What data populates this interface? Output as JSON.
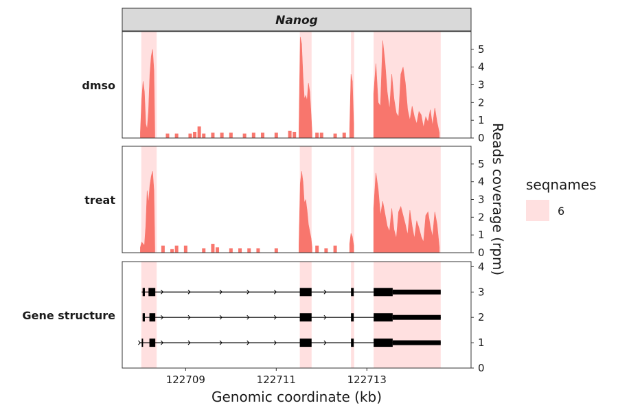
{
  "chart_data": {
    "type": "area",
    "strip_title": "Nanog",
    "x_axis": {
      "title": "Genomic coordinate (kb)",
      "ticks": [
        122709,
        122711,
        122713
      ],
      "tick_labels": [
        "122709",
        "122711",
        "122713"
      ],
      "range": [
        122707.6,
        122715.3
      ]
    },
    "y_axis": {
      "title": "Reads coverage (rpm)",
      "coverage_ticks": [
        0,
        1,
        2,
        3,
        4,
        5
      ],
      "gene_ticks": [
        0,
        1,
        2,
        3,
        4
      ],
      "coverage_range": [
        0,
        6
      ],
      "gene_range": [
        0,
        4.2
      ]
    },
    "panel_labels": [
      "dmso",
      "treat",
      "Gene structure"
    ],
    "legend": {
      "title": "seqnames",
      "entries": [
        {
          "label": "6",
          "color": "#ffe0e0"
        }
      ],
      "placement": "right"
    },
    "colors": {
      "coverage": "#f8766d",
      "highlight": "#ffe0e0",
      "strip": "#d9d9d9",
      "gene": "#000000"
    },
    "highlight_regions": [
      [
        122708.02,
        122708.36
      ],
      [
        122711.52,
        122711.78
      ],
      [
        122712.65,
        122712.72
      ],
      [
        122713.15,
        122714.63
      ]
    ],
    "series": [
      {
        "name": "dmso",
        "peaks": [
          {
            "x": [
              122708.0,
              122708.03,
              122708.06,
              122708.09,
              122708.12,
              122708.15,
              122708.18,
              122708.21,
              122708.24,
              122708.27,
              122708.3,
              122708.32
            ],
            "y": [
              0.3,
              2.2,
              3.2,
              2.6,
              0.8,
              0.5,
              1.5,
              3.6,
              4.6,
              5.0,
              3.8,
              0.3
            ]
          },
          {
            "x": [
              122711.5,
              122711.53,
              122711.56,
              122711.59,
              122711.62,
              122711.65,
              122711.68,
              122711.71,
              122711.74,
              122711.77,
              122711.79
            ],
            "y": [
              0.4,
              5.7,
              5.3,
              3.5,
              2.2,
              2.4,
              2.1,
              3.1,
              2.6,
              1.3,
              0.3
            ]
          },
          {
            "x": [
              122712.62,
              122712.65,
              122712.68,
              122712.71
            ],
            "y": [
              0.5,
              3.6,
              3.2,
              0.8
            ]
          },
          {
            "x": [
              122713.15,
              122713.2,
              122713.25,
              122713.3,
              122713.35,
              122713.4,
              122713.45,
              122713.5,
              122713.55,
              122713.6,
              122713.65,
              122713.7,
              122713.75,
              122713.8,
              122713.85,
              122713.9,
              122713.95,
              122714.0,
              122714.05,
              122714.1,
              122714.15,
              122714.2,
              122714.25,
              122714.3,
              122714.35,
              122714.4,
              122714.45,
              122714.5,
              122714.55,
              122714.6
            ],
            "y": [
              2.5,
              4.2,
              2.0,
              1.8,
              5.5,
              4.3,
              2.6,
              1.6,
              3.6,
              2.2,
              1.4,
              1.2,
              3.6,
              4.0,
              3.1,
              1.6,
              1.0,
              1.8,
              1.2,
              0.8,
              1.5,
              1.3,
              0.6,
              1.2,
              0.9,
              1.6,
              0.7,
              1.7,
              0.9,
              0.3
            ]
          }
        ],
        "blips": [
          {
            "x": 122708.6,
            "y": 0.25
          },
          {
            "x": 122708.8,
            "y": 0.25
          },
          {
            "x": 122709.1,
            "y": 0.25
          },
          {
            "x": 122709.2,
            "y": 0.35
          },
          {
            "x": 122709.3,
            "y": 0.65
          },
          {
            "x": 122709.4,
            "y": 0.25
          },
          {
            "x": 122709.6,
            "y": 0.3
          },
          {
            "x": 122709.8,
            "y": 0.3
          },
          {
            "x": 122710.0,
            "y": 0.3
          },
          {
            "x": 122710.3,
            "y": 0.25
          },
          {
            "x": 122710.5,
            "y": 0.3
          },
          {
            "x": 122710.7,
            "y": 0.3
          },
          {
            "x": 122711.0,
            "y": 0.3
          },
          {
            "x": 122711.3,
            "y": 0.4
          },
          {
            "x": 122711.4,
            "y": 0.35
          },
          {
            "x": 122711.9,
            "y": 0.3
          },
          {
            "x": 122712.0,
            "y": 0.3
          },
          {
            "x": 122712.3,
            "y": 0.25
          },
          {
            "x": 122712.5,
            "y": 0.3
          }
        ]
      },
      {
        "name": "treat",
        "peaks": [
          {
            "x": [
              122708.0,
              122708.03,
              122708.06,
              122708.09,
              122708.12,
              122708.15,
              122708.18,
              122708.21,
              122708.24,
              122708.27,
              122708.3,
              122708.32
            ],
            "y": [
              0.3,
              0.6,
              0.5,
              0.4,
              1.5,
              3.5,
              2.8,
              3.8,
              4.3,
              4.6,
              3.5,
              0.3
            ]
          },
          {
            "x": [
              122711.5,
              122711.53,
              122711.56,
              122711.59,
              122711.62,
              122711.65,
              122711.68,
              122711.71,
              122711.74,
              122711.77,
              122711.79
            ],
            "y": [
              0.4,
              3.9,
              4.6,
              4.0,
              2.8,
              3.0,
              2.4,
              1.6,
              1.2,
              0.8,
              0.3
            ]
          },
          {
            "x": [
              122712.62,
              122712.65,
              122712.68,
              122712.71
            ],
            "y": [
              0.5,
              1.1,
              0.9,
              0.4
            ]
          },
          {
            "x": [
              122713.15,
              122713.2,
              122713.25,
              122713.3,
              122713.35,
              122713.4,
              122713.45,
              122713.5,
              122713.55,
              122713.6,
              122713.65,
              122713.7,
              122713.75,
              122713.8,
              122713.85,
              122713.9,
              122713.95,
              122714.0,
              122714.05,
              122714.1,
              122714.15,
              122714.2,
              122714.25,
              122714.3,
              122714.35,
              122714.4,
              122714.45,
              122714.5,
              122714.55,
              122714.6
            ],
            "y": [
              2.5,
              4.5,
              3.6,
              2.1,
              2.9,
              2.2,
              1.5,
              1.2,
              2.5,
              1.3,
              0.8,
              2.3,
              2.6,
              2.1,
              1.6,
              1.0,
              2.4,
              1.5,
              0.8,
              1.8,
              1.4,
              0.9,
              0.6,
              2.1,
              2.3,
              1.5,
              0.9,
              2.3,
              1.6,
              0.3
            ]
          }
        ],
        "blips": [
          {
            "x": 122708.5,
            "y": 0.4
          },
          {
            "x": 122708.7,
            "y": 0.2
          },
          {
            "x": 122708.8,
            "y": 0.4
          },
          {
            "x": 122709.0,
            "y": 0.4
          },
          {
            "x": 122709.4,
            "y": 0.25
          },
          {
            "x": 122709.6,
            "y": 0.5
          },
          {
            "x": 122709.7,
            "y": 0.3
          },
          {
            "x": 122710.0,
            "y": 0.25
          },
          {
            "x": 122710.2,
            "y": 0.25
          },
          {
            "x": 122710.4,
            "y": 0.25
          },
          {
            "x": 122710.6,
            "y": 0.25
          },
          {
            "x": 122711.0,
            "y": 0.25
          },
          {
            "x": 122711.9,
            "y": 0.4
          },
          {
            "x": 122712.1,
            "y": 0.25
          },
          {
            "x": 122712.3,
            "y": 0.4
          }
        ]
      }
    ],
    "gene_structure": {
      "transcripts": [
        {
          "row": 3,
          "start": 122708.03,
          "end": 122714.63,
          "exons": [
            [
              122708.05,
              122708.1
            ],
            [
              122708.18,
              122708.33
            ],
            [
              122711.52,
              122711.78
            ],
            [
              122712.65,
              122712.71
            ],
            [
              122713.15,
              122713.57
            ]
          ],
          "utr": [
            122713.57,
            122714.63
          ],
          "arrows": [
            122708.5,
            122709.1,
            122709.8,
            122710.4,
            122711.0,
            122712.1
          ]
        },
        {
          "row": 2,
          "start": 122708.05,
          "end": 122714.63,
          "exons": [
            [
              122708.05,
              122708.1
            ],
            [
              122708.2,
              122708.33
            ],
            [
              122711.52,
              122711.78
            ],
            [
              122712.65,
              122712.71
            ],
            [
              122713.15,
              122713.57
            ]
          ],
          "utr": [
            122713.57,
            122714.63
          ],
          "arrows": [
            122708.1,
            122708.5,
            122709.1,
            122709.8,
            122710.4,
            122711.0,
            122712.1
          ]
        },
        {
          "row": 1,
          "start": 122707.98,
          "end": 122714.63,
          "exons": [
            [
              122708.03,
              122708.06
            ],
            [
              122708.2,
              122708.33
            ],
            [
              122711.52,
              122711.78
            ],
            [
              122712.65,
              122712.71
            ],
            [
              122713.15,
              122713.57
            ]
          ],
          "utr": [
            122713.57,
            122714.63
          ],
          "arrows": [
            122708.0,
            122708.5,
            122709.1,
            122709.8,
            122710.4,
            122711.0,
            122712.1
          ]
        }
      ]
    }
  }
}
